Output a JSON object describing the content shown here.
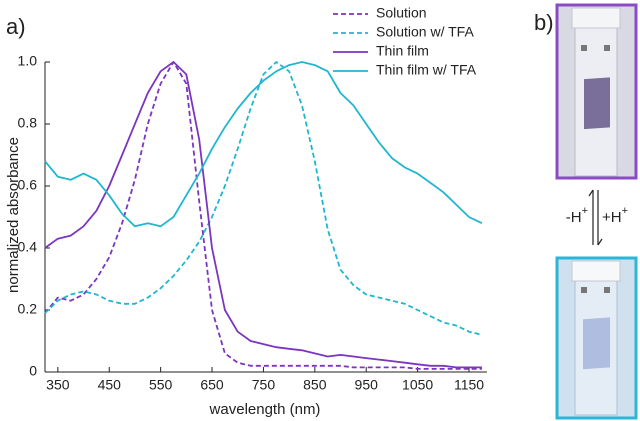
{
  "chart_data": {
    "type": "line",
    "panel_labels": [
      "a)",
      "b)"
    ],
    "xlabel": "wavelength (nm)",
    "ylabel": "normalized absorbance",
    "xlim": [
      325,
      1185
    ],
    "xticks": [
      350,
      450,
      550,
      650,
      750,
      850,
      950,
      1050,
      1150
    ],
    "ylim": [
      0,
      1.0
    ],
    "yticks": [
      0,
      0.2,
      0.4,
      0.6,
      0.8,
      {
        "value": 1.0,
        "label": "1.0"
      }
    ],
    "x": [
      325,
      350,
      375,
      400,
      425,
      450,
      475,
      500,
      525,
      550,
      575,
      600,
      625,
      650,
      675,
      700,
      725,
      750,
      775,
      800,
      825,
      850,
      875,
      900,
      925,
      950,
      975,
      1000,
      1025,
      1050,
      1075,
      1100,
      1125,
      1150,
      1175
    ],
    "series": [
      {
        "name": "Solution",
        "color": "#7b35c0",
        "dashed": true,
        "values": [
          0.19,
          0.24,
          0.23,
          0.25,
          0.3,
          0.37,
          0.48,
          0.62,
          0.8,
          0.93,
          1.0,
          0.93,
          0.55,
          0.2,
          0.06,
          0.03,
          0.02,
          0.02,
          0.02,
          0.02,
          0.02,
          0.02,
          0.02,
          0.02,
          0.015,
          0.015,
          0.015,
          0.015,
          0.015,
          0.01,
          0.01,
          0.01,
          0.01,
          0.01,
          0.01
        ]
      },
      {
        "name": "Solution w/ TFA",
        "color": "#1fb6d0",
        "dashed": true,
        "values": [
          0.19,
          0.23,
          0.25,
          0.26,
          0.25,
          0.23,
          0.22,
          0.22,
          0.24,
          0.27,
          0.31,
          0.36,
          0.42,
          0.5,
          0.6,
          0.72,
          0.85,
          0.96,
          1.0,
          0.97,
          0.86,
          0.68,
          0.46,
          0.33,
          0.28,
          0.25,
          0.24,
          0.23,
          0.22,
          0.2,
          0.18,
          0.16,
          0.15,
          0.13,
          0.12
        ]
      },
      {
        "name": "Thin film",
        "color": "#7b35c0",
        "dashed": false,
        "values": [
          0.4,
          0.43,
          0.44,
          0.47,
          0.52,
          0.6,
          0.7,
          0.8,
          0.9,
          0.97,
          1.0,
          0.96,
          0.75,
          0.4,
          0.2,
          0.13,
          0.1,
          0.09,
          0.08,
          0.075,
          0.07,
          0.06,
          0.05,
          0.055,
          0.05,
          0.045,
          0.04,
          0.035,
          0.03,
          0.025,
          0.02,
          0.02,
          0.015,
          0.015,
          0.015
        ]
      },
      {
        "name": "Thin film w/ TFA",
        "color": "#1fb6d0",
        "dashed": false,
        "values": [
          0.68,
          0.63,
          0.62,
          0.64,
          0.62,
          0.57,
          0.51,
          0.47,
          0.48,
          0.47,
          0.5,
          0.57,
          0.64,
          0.72,
          0.79,
          0.85,
          0.9,
          0.94,
          0.97,
          0.99,
          1.0,
          0.99,
          0.97,
          0.9,
          0.86,
          0.8,
          0.74,
          0.69,
          0.66,
          0.64,
          0.61,
          0.58,
          0.54,
          0.5,
          0.48
        ]
      }
    ],
    "annotations": [
      {
        "text": "-H",
        "sup": "+"
      },
      {
        "text": "+H",
        "sup": "+"
      }
    ]
  }
}
